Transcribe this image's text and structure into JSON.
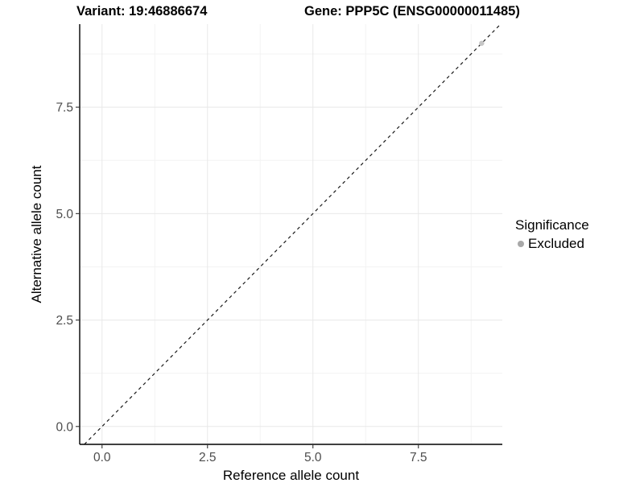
{
  "chart_data": {
    "type": "scatter",
    "titles": {
      "left": "Variant: 19:46886674",
      "right": "Gene: PPP5C (ENSG00000011485)"
    },
    "xlabel": "Reference allele count",
    "ylabel": "Alternative allele count",
    "xlim": [
      -0.53,
      9.49
    ],
    "ylim": [
      -0.42,
      9.45
    ],
    "x_ticks": [
      0,
      2.5,
      5,
      7.5
    ],
    "x_tick_labels": [
      "0.0",
      "2.5",
      "5.0",
      "7.5"
    ],
    "y_ticks": [
      0,
      2.5,
      5,
      7.5
    ],
    "y_tick_labels": [
      "0.0",
      "2.5",
      "5.0",
      "7.5"
    ],
    "x_minor": [
      1.25,
      3.75,
      6.25,
      8.75
    ],
    "y_minor": [
      1.25,
      3.75,
      6.25,
      8.75
    ],
    "grid": {
      "major": true,
      "minor": true,
      "major_color": "#e8e8e8",
      "minor_color": "#f3f3f3"
    },
    "axis_color": "#000000",
    "tick_color": "#333333",
    "tick_label_color": "#4d4d4d",
    "reference_line": {
      "slope": 1,
      "intercept": 0,
      "style": "dashed",
      "color": "#1a1a1a"
    },
    "series": [
      {
        "name": "Excluded",
        "color": "#c6c6c6",
        "points": [
          [
            9,
            9
          ]
        ]
      }
    ],
    "legend": {
      "position": "right",
      "title": "Significance",
      "items": [
        {
          "label": "Excluded",
          "color": "#a8a8a8"
        }
      ]
    }
  }
}
